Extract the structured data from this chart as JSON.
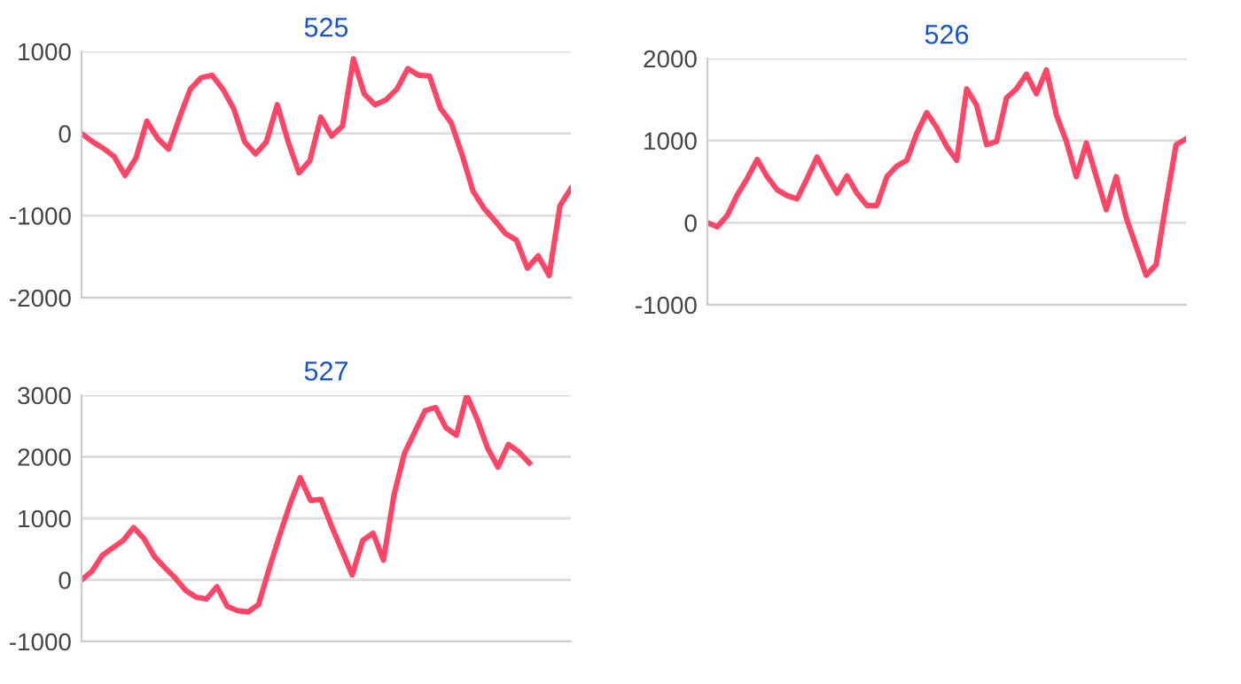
{
  "chart_data": [
    {
      "type": "line",
      "title": "525",
      "categories": [
        null,
        null,
        null,
        null,
        null,
        null,
        null,
        null,
        null,
        null,
        null,
        null,
        null,
        null,
        null,
        null,
        null,
        null,
        null,
        null,
        null,
        null,
        null,
        null,
        null,
        null,
        null,
        null,
        null,
        null,
        null,
        null,
        null,
        null,
        null,
        null,
        null,
        null,
        null,
        null,
        null,
        null,
        null,
        null,
        null,
        null
      ],
      "series": [
        {
          "color": "#ff4466",
          "values": [
            0,
            -100,
            -180,
            -280,
            -510,
            -300,
            150,
            -60,
            -190,
            190,
            540,
            680,
            710,
            540,
            300,
            -100,
            -250,
            -100,
            350,
            -100,
            -480,
            -330,
            200,
            -30,
            90,
            910,
            480,
            350,
            410,
            540,
            790,
            710,
            700,
            310,
            130,
            -260,
            -700,
            -910,
            -1060,
            -1220,
            -1300,
            -1640,
            -1490,
            -1730,
            -880,
            -670
          ]
        }
      ],
      "ylim": [
        -2000,
        1000
      ],
      "yticks": [
        -2000,
        -1000,
        0,
        1000
      ],
      "grid": "y",
      "tick_labels": "y",
      "marker": "none",
      "line_style": "solid"
    },
    {
      "type": "line",
      "title": "527",
      "categories": [
        null,
        null,
        null,
        null,
        null,
        null,
        null,
        null,
        null,
        null,
        null,
        null,
        null,
        null,
        null,
        null,
        null,
        null,
        null,
        null,
        null,
        null,
        null,
        null,
        null,
        null,
        null,
        null,
        null,
        null,
        null,
        null,
        null,
        null,
        null,
        null,
        null,
        null,
        null,
        null,
        null,
        null,
        null,
        null,
        null,
        null,
        null,
        null
      ],
      "series": [
        {
          "color": "#ff4466",
          "values": [
            0,
            140,
            400,
            520,
            640,
            850,
            670,
            380,
            200,
            30,
            -170,
            -280,
            -310,
            -110,
            -430,
            -500,
            -520,
            -400,
            170,
            710,
            1220,
            1660,
            1290,
            1310,
            880,
            480,
            80,
            640,
            760,
            320,
            1370,
            2050,
            2400,
            2750,
            2800,
            2470,
            2350,
            3000,
            2610,
            2140,
            1830,
            2200,
            2080,
            1900,
            null,
            null,
            null,
            null
          ]
        }
      ],
      "ylim": [
        -1000,
        3000
      ],
      "yticks": [
        -1000,
        0,
        1000,
        2000,
        3000
      ],
      "grid": "y",
      "tick_labels": "y",
      "marker": "none",
      "line_style": "solid"
    },
    {
      "type": "line",
      "title": "526",
      "categories": [
        null,
        null,
        null,
        null,
        null,
        null,
        null,
        null,
        null,
        null,
        null,
        null,
        null,
        null,
        null,
        null,
        null,
        null,
        null,
        null,
        null,
        null,
        null,
        null,
        null,
        null,
        null,
        null,
        null,
        null,
        null,
        null,
        null,
        null,
        null,
        null,
        null,
        null,
        null,
        null,
        null,
        null,
        null,
        null,
        null,
        null,
        null,
        null,
        null
      ],
      "series": [
        {
          "color": "#ff4466",
          "values": [
            0,
            -50,
            90,
            340,
            540,
            770,
            560,
            400,
            330,
            290,
            540,
            800,
            570,
            360,
            570,
            360,
            210,
            210,
            560,
            690,
            760,
            1090,
            1340,
            1160,
            930,
            760,
            1630,
            1430,
            950,
            990,
            1520,
            1630,
            1810,
            1570,
            1860,
            1310,
            990,
            560,
            970,
            560,
            160,
            560,
            60,
            -290,
            -640,
            -510,
            240,
            950,
            1020
          ]
        }
      ],
      "ylim": [
        -1000,
        2000
      ],
      "yticks": [
        -1000,
        0,
        1000,
        2000
      ],
      "grid": "y",
      "tick_labels": "y",
      "marker": "none",
      "line_style": "solid"
    }
  ]
}
